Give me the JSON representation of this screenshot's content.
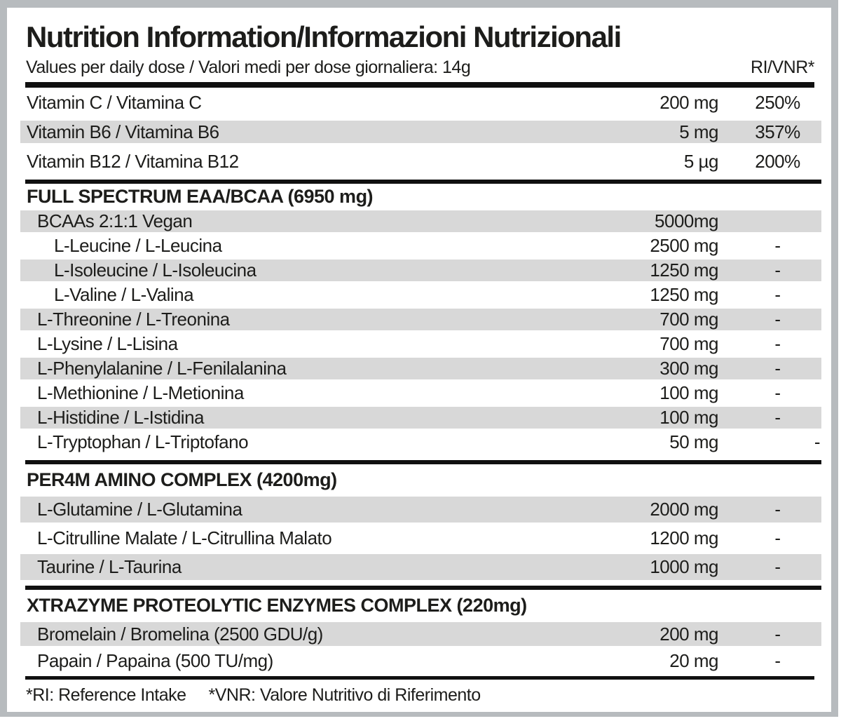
{
  "document": {
    "title": "Nutrition Information/Informazioni Nutrizionali",
    "subtitle": "Values per daily dose / Valori medi per dose giornaliera: 14g",
    "dose": "14g",
    "ri_column_header": "RI/VNR*",
    "footnote_ri": "*RI: Reference Intake",
    "footnote_vnr": "*VNR: Valore Nutritivo di Riferimento"
  },
  "colors": {
    "frame": "#b7bbbe",
    "stripe": "#d8d8d8",
    "rule": "#101010",
    "text": "#1d1d1b",
    "background": "#ffffff"
  },
  "sections": [
    {
      "key": "vitamins",
      "heading": null,
      "rows": [
        {
          "label": "Vitamin C / Vitamina C",
          "amount": "200 mg",
          "ri": "250%",
          "indent": 0,
          "shaded": false
        },
        {
          "label": "Vitamin B6 / Vitamina B6",
          "amount": "5 mg",
          "ri": "357%",
          "indent": 0,
          "shaded": true
        },
        {
          "label": "Vitamin B12 / Vitamina B12",
          "amount": "5 µg",
          "ri": "200%",
          "indent": 0,
          "shaded": false
        }
      ]
    },
    {
      "key": "eaa",
      "heading": "FULL SPECTRUM EAA/BCAA (6950 mg)",
      "rows": [
        {
          "label": "BCAAs 2:1:1 Vegan",
          "amount": "5000mg",
          "ri": "",
          "indent": 1,
          "shaded": true
        },
        {
          "label": "L-Leucine / L-Leucina",
          "amount": "2500 mg",
          "ri": "-",
          "indent": 2,
          "shaded": false
        },
        {
          "label": "L-Isoleucine / L-Isoleucina",
          "amount": "1250 mg",
          "ri": "-",
          "indent": 2,
          "shaded": true
        },
        {
          "label": "L-Valine / L-Valina",
          "amount": "1250 mg",
          "ri": "-",
          "indent": 2,
          "shaded": false
        },
        {
          "label": "L-Threonine / L-Treonina",
          "amount": "700 mg",
          "ri": "-",
          "indent": 1,
          "shaded": true
        },
        {
          "label": "L-Lysine / L-Lisina",
          "amount": "700 mg",
          "ri": "-",
          "indent": 1,
          "shaded": false
        },
        {
          "label": "L-Phenylalanine / L-Fenilalanina",
          "amount": "300 mg",
          "ri": "-",
          "indent": 1,
          "shaded": true
        },
        {
          "label": "L-Methionine / L-Metionina",
          "amount": "100 mg",
          "ri": "-",
          "indent": 1,
          "shaded": false
        },
        {
          "label": "L-Histidine / L-Istidina",
          "amount": "100 mg",
          "ri": "-",
          "indent": 1,
          "shaded": true
        },
        {
          "label": "L-Tryptophan / L-Triptofano",
          "amount": "50 mg",
          "ri": "-",
          "indent": 1,
          "shaded": false,
          "ri_far_right": true
        }
      ]
    },
    {
      "key": "per4m",
      "heading": "PER4M AMINO COMPLEX (4200mg)",
      "rows": [
        {
          "label": "L-Glutamine / L-Glutamina",
          "amount": "2000 mg",
          "ri": "-",
          "indent": 1,
          "shaded": true
        },
        {
          "label": "L-Citrulline Malate / L-Citrullina Malato",
          "amount": "1200 mg",
          "ri": "-",
          "indent": 1,
          "shaded": false
        },
        {
          "label": "Taurine / L-Taurina",
          "amount": "1000 mg",
          "ri": "-",
          "indent": 1,
          "shaded": true
        }
      ]
    },
    {
      "key": "enzymes",
      "heading": "XTRAZYME PROTEOLYTIC ENZYMES COMPLEX (220mg)",
      "rows": [
        {
          "label": "Bromelain / Bromelina (2500 GDU/g)",
          "amount": "200 mg",
          "ri": "-",
          "indent": 1,
          "shaded": true
        },
        {
          "label": "Papain / Papaina (500 TU/mg)",
          "amount": "20 mg",
          "ri": "-",
          "indent": 1,
          "shaded": false
        }
      ]
    }
  ]
}
